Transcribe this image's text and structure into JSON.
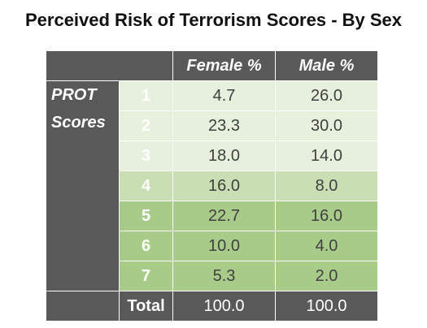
{
  "chart_data": {
    "type": "table",
    "title": "Perceived Risk of Terrorism Scores - By Sex",
    "columns": [
      "Female %",
      "Male %"
    ],
    "row_group_label": [
      "PROT",
      "Scores"
    ],
    "rows": [
      {
        "label": "1",
        "values": [
          "4.7",
          "26.0"
        ]
      },
      {
        "label": "2",
        "values": [
          "23.3",
          "30.0"
        ]
      },
      {
        "label": "3",
        "values": [
          "18.0",
          "14.0"
        ]
      },
      {
        "label": "4",
        "values": [
          "16.0",
          "8.0"
        ]
      },
      {
        "label": "5",
        "values": [
          "22.7",
          "16.0"
        ]
      },
      {
        "label": "6",
        "values": [
          "10.0",
          "4.0"
        ]
      },
      {
        "label": "7",
        "values": [
          "5.3",
          "2.0"
        ]
      }
    ],
    "total": {
      "label": "Total",
      "values": [
        "100.0",
        "100.0"
      ]
    }
  },
  "colors": {
    "header_bg": "#595959",
    "row_light": "#e6f0dc",
    "row_mid": "#c9deb3",
    "row_dark": "#a8cb8a",
    "num_light": "#e6f0dc",
    "num_mid": "#c9deb3",
    "num_dark": "#a8cb8a"
  }
}
